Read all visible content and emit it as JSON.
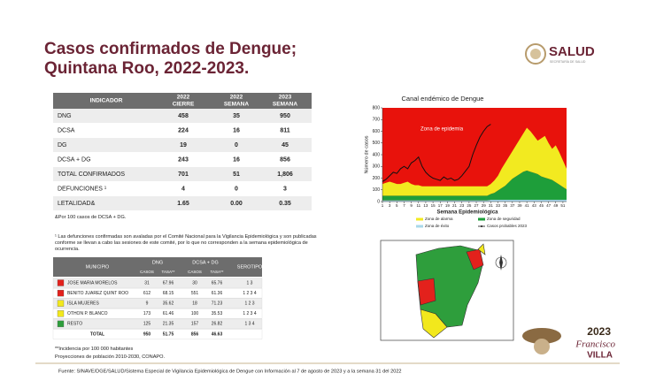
{
  "header": {
    "title_line1": "Casos confirmados de Dengue;",
    "title_line2": "Quintana Roo, 2022-2023.",
    "logo": "SALUD",
    "logo_sub": "SECRETARÍA DE SALUD"
  },
  "indicators": {
    "header": [
      "INDICADOR",
      {
        "year": "2022",
        "label": "CIERRE"
      },
      {
        "year": "2022",
        "label": "SEMANA"
      },
      {
        "year": "2023",
        "label": "SEMANA"
      }
    ],
    "rows": [
      [
        "DNG",
        "458",
        "35",
        "950"
      ],
      [
        "DCSA",
        "224",
        "16",
        "811"
      ],
      [
        "DG",
        "19",
        "0",
        "45"
      ],
      [
        "DCSA + DG",
        "243",
        "16",
        "856"
      ],
      [
        "TOTAL CONFIRMADOS",
        "701",
        "51",
        "1,806"
      ],
      [
        "DEFUNCIONES ¹",
        "4",
        "0",
        "3"
      ],
      [
        "LETALIDAD&",
        "1.65",
        "0.00",
        "0.35"
      ]
    ],
    "note": "&Por 100 casos de DCSA + DG.",
    "footnote": "¹ Las defunciones confirmadas son avaladas por el Comité Nacional para la Vigilancia Epidemiológica y son publicadas conforme se llevan a cabo las sesiones de este comité, por lo que no corresponden a la semana epidemiológica de ocurrencia."
  },
  "municipios": {
    "header": {
      "municipio": "MUNICIPIO",
      "dng": "DNG",
      "dcsa": "DCSA + DG",
      "casos": "CASOS",
      "tasa": "TASA**",
      "serotipo": "SEROTIPO"
    },
    "rows": [
      {
        "color": "#e3211c",
        "cells": [
          "JOSE MARIA MORELOS",
          "31",
          "67.96",
          "30",
          "65.76",
          "1  3"
        ]
      },
      {
        "color": "#e3211c",
        "cells": [
          "BENITO JUAREZ QUINT ROO",
          "612",
          "68.15",
          "551",
          "61.36",
          "1  2  3  4"
        ]
      },
      {
        "color": "#f2e81c",
        "cells": [
          "ISLA MUJERES",
          "9",
          "35.62",
          "18",
          "71.23",
          "1  2  3"
        ]
      },
      {
        "color": "#f2e81c",
        "cells": [
          "OTHON P. BLANCO",
          "173",
          "61.46",
          "100",
          "35.53",
          "1  2  3  4"
        ]
      },
      {
        "color": "#2e9e3c",
        "cells": [
          "RESTO",
          "125",
          "21.35",
          "157",
          "26.82",
          "1  3  4"
        ]
      },
      {
        "color": null,
        "cells": [
          "TOTAL",
          "950",
          "51.75",
          "856",
          "46.63"
        ]
      }
    ],
    "note1": "**Incidencia por 100 000 habitantes",
    "note2": "Proyecciones de población 2010-2030,  CONAPO."
  },
  "chart_data": {
    "type": "endemic-channel",
    "title": "Canal endémico de Dengue",
    "y_label": "Número de casos",
    "x_label": "Semana Epidemiológica",
    "annotation": "Zona de epidemia",
    "epidemic_color": "#e8120c",
    "x": [
      1,
      2,
      3,
      4,
      5,
      6,
      7,
      8,
      9,
      10,
      11,
      12,
      13,
      14,
      15,
      16,
      17,
      18,
      19,
      20,
      21,
      22,
      23,
      24,
      25,
      26,
      27,
      28,
      29,
      30,
      31,
      32,
      33,
      34,
      35,
      36,
      37,
      38,
      39,
      40,
      41,
      42,
      43,
      44,
      45,
      46,
      47,
      48,
      49,
      50,
      51,
      52
    ],
    "xlim": [
      1,
      52
    ],
    "xticks": [
      1,
      3,
      5,
      7,
      9,
      11,
      13,
      15,
      17,
      19,
      21,
      23,
      25,
      27,
      29,
      31,
      33,
      35,
      37,
      39,
      41,
      43,
      45,
      47,
      49,
      51
    ],
    "ylim": [
      0,
      800
    ],
    "yticks": [
      0,
      100,
      200,
      300,
      400,
      500,
      600,
      700,
      800
    ],
    "areas": [
      {
        "name": "Zona de éxito",
        "color": "#a9d8ea",
        "values": [
          10,
          10,
          10,
          10,
          10,
          10,
          10,
          10,
          10,
          10,
          10,
          10,
          10,
          10,
          10,
          10,
          10,
          10,
          10,
          10,
          10,
          10,
          10,
          10,
          10,
          10,
          10,
          10,
          10,
          10,
          15,
          15,
          15,
          15,
          15,
          15,
          15,
          15,
          15,
          15,
          15,
          15,
          15,
          15,
          15,
          15,
          15,
          15,
          15,
          15,
          15,
          15
        ]
      },
      {
        "name": "Zona de seguridad",
        "color": "#1e9e3a",
        "values": [
          40,
          40,
          40,
          40,
          40,
          40,
          40,
          40,
          40,
          40,
          40,
          40,
          40,
          40,
          40,
          40,
          40,
          40,
          40,
          40,
          40,
          40,
          40,
          40,
          40,
          40,
          40,
          40,
          40,
          40,
          50,
          60,
          80,
          100,
          120,
          150,
          180,
          200,
          220,
          240,
          250,
          240,
          230,
          220,
          200,
          190,
          180,
          170,
          150,
          130,
          110,
          90
        ]
      },
      {
        "name": "Zona de alarma",
        "color": "#f2ea20",
        "values": [
          100,
          110,
          120,
          110,
          100,
          100,
          110,
          120,
          100,
          90,
          90,
          80,
          80,
          80,
          80,
          80,
          80,
          80,
          80,
          80,
          80,
          80,
          80,
          80,
          80,
          80,
          80,
          80,
          80,
          80,
          85,
          105,
          125,
          165,
          195,
          215,
          235,
          265,
          295,
          325,
          365,
          345,
          315,
          285,
          325,
          355,
          305,
          265,
          315,
          275,
          225,
          175
        ]
      }
    ],
    "series": [
      {
        "name": "Casos probables 2023",
        "color": "#111111",
        "values": [
          170,
          190,
          220,
          250,
          240,
          280,
          300,
          280,
          330,
          350,
          380,
          300,
          250,
          220,
          200,
          190,
          180,
          210,
          190,
          200,
          180,
          190,
          220,
          260,
          300,
          400,
          480,
          550,
          600,
          640,
          660,
          null,
          null,
          null,
          null,
          null,
          null,
          null,
          null,
          null,
          null,
          null,
          null,
          null,
          null,
          null,
          null,
          null,
          null,
          null,
          null,
          null
        ]
      }
    ],
    "legend_order": [
      2,
      1,
      0
    ]
  },
  "branding": {
    "year": "2023",
    "name1": "Francisco",
    "name2": "VILLA"
  },
  "footer": "Fuente: SINAVE/DGE/SALUD/Sistema Especial de Vigilancia Epidemiológica de Dengue con Información al 7 de agosto de 2023 y a la semana 31 del 2022"
}
